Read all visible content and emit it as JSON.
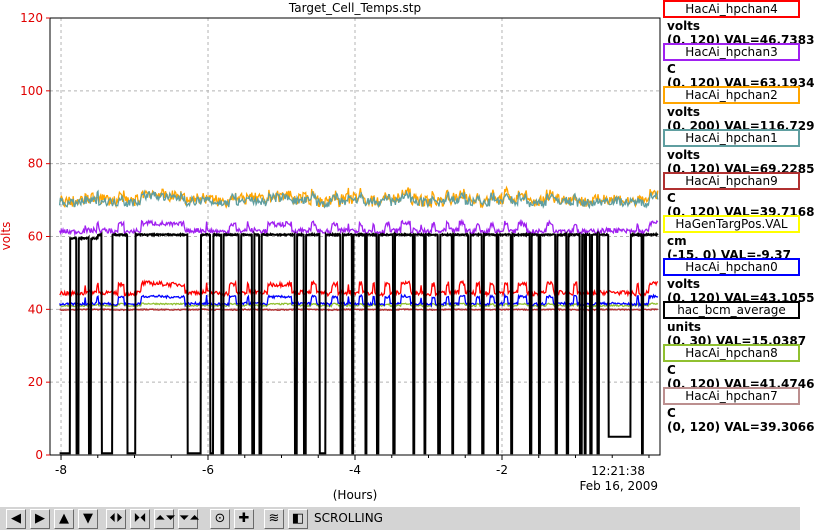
{
  "chart_data": {
    "type": "line",
    "title": "Target_Cell_Temps.stp",
    "xlabel": "(Hours)",
    "ylabel": "volts",
    "xlim": [
      -8.15,
      0.15
    ],
    "ylim": [
      0,
      120
    ],
    "x_ticks": [
      -8,
      -6,
      -4,
      -2
    ],
    "y_ticks": [
      0,
      20,
      40,
      60,
      80,
      100,
      120
    ],
    "time_label": "12:21:38",
    "date_label": "Feb 16, 2009",
    "grid": true,
    "legend_position": "right",
    "series": [
      {
        "name": "HacAi_hpchan4",
        "unit": "volts",
        "range": "(0, 120)",
        "val_text": "VAL=46.7383",
        "color": "#ff0000",
        "base": 47.0,
        "noise": 0.6,
        "dips": -2.5
      },
      {
        "name": "HacAi_hpchan3",
        "unit": "C",
        "range": "(0, 120)",
        "val_text": "VAL=63.1934",
        "color": "#a020f0",
        "base": 63.5,
        "noise": 0.7,
        "dips": -2.0
      },
      {
        "name": "HacAi_hpchan2",
        "unit": "volts",
        "range": "(0, 200)",
        "val_text": "VAL=116.729",
        "color": "#ffa500",
        "base": 71.5,
        "noise": 1.6,
        "dips": -1.5
      },
      {
        "name": "HacAi_hpchan1",
        "unit": "volts",
        "range": "(0, 120)",
        "val_text": "VAL=69.2285",
        "color": "#5f9ea0",
        "base": 71.0,
        "noise": 1.2,
        "dips": -1.5
      },
      {
        "name": "HacAi_hpchan9",
        "unit": "C",
        "range": "(0, 120)",
        "val_text": "VAL=39.7168",
        "color": "#b03030",
        "base": 39.9,
        "noise": 0.15,
        "dips": 0
      },
      {
        "name": "HaGenTargPos.VAL",
        "unit": "cm",
        "range": "(-15, 0)",
        "val_text": "VAL=-9.37",
        "color": "#ffff00",
        "base": 60.0,
        "noise": 0,
        "dips": 0
      },
      {
        "name": "HacAi_hpchan0",
        "unit": "volts",
        "range": "(0, 120)",
        "val_text": "VAL=43.1055",
        "color": "#0000ff",
        "base": 43.5,
        "noise": 0.35,
        "dips": -2.0
      },
      {
        "name": "hac_bcm_average",
        "unit": "units",
        "range": "(0, 30)",
        "val_text": "VAL=15.0387",
        "color": "#000000",
        "base": 60.5,
        "noise": 0.3,
        "dips": 0
      },
      {
        "name": "HacAi_hpchan8",
        "unit": "C",
        "range": "(0, 120)",
        "val_text": "VAL=41.4746",
        "color": "#90c030",
        "base": 41.5,
        "noise": 0.2,
        "dips": -0.5
      },
      {
        "name": "HacAi_hpchan7",
        "unit": "C",
        "range": "(0, 120)",
        "val_text": "VAL=39.3066",
        "color": "#bc8f8f",
        "base": 40.0,
        "noise": 0.15,
        "dips": 0
      }
    ],
    "beam_trips": [
      [
        -8.02,
        -7.88
      ],
      [
        -7.79,
        -7.76
      ],
      [
        -7.62,
        -7.59
      ],
      [
        -7.45,
        -7.3
      ],
      [
        -7.1,
        -6.99
      ],
      [
        -6.28,
        -6.1
      ],
      [
        -5.97,
        -5.93
      ],
      [
        -5.82,
        -5.79
      ],
      [
        -5.58,
        -5.55
      ],
      [
        -5.4,
        -5.37
      ],
      [
        -5.3,
        -5.27
      ],
      [
        -4.82,
        -4.79
      ],
      [
        -4.7,
        -4.67
      ],
      [
        -4.48,
        -4.4
      ],
      [
        -4.2,
        -4.17
      ],
      [
        -4.04,
        -4.02
      ],
      [
        -3.86,
        -3.84
      ],
      [
        -3.7,
        -3.68
      ],
      [
        -3.48,
        -3.46
      ],
      [
        -3.21,
        -3.19
      ],
      [
        -3.06,
        -3.04
      ],
      [
        -2.87,
        -2.84
      ],
      [
        -2.68,
        -2.66
      ],
      [
        -2.46,
        -2.43
      ],
      [
        -2.27,
        -2.25
      ],
      [
        -2.07,
        -2.05
      ],
      [
        -1.88,
        -1.86
      ],
      [
        -1.62,
        -1.6
      ],
      [
        -1.5,
        -1.48
      ],
      [
        -1.27,
        -1.25
      ],
      [
        -1.12,
        -1.1
      ],
      [
        -0.94,
        -0.91
      ],
      [
        -0.88,
        -0.86
      ],
      [
        -0.8,
        -0.78
      ],
      [
        -0.7,
        -0.68
      ],
      [
        -0.55,
        -0.25
      ],
      [
        -0.1,
        -0.08
      ]
    ]
  },
  "toolbar": {
    "status": "SCROLLING",
    "buttons": [
      "◀",
      "▶",
      "▲",
      "▼",
      "⏴⏵",
      "⏵⏴",
      "⏶⏷",
      "⏷⏶",
      "⊙",
      "✚",
      "≋",
      "◧"
    ]
  }
}
